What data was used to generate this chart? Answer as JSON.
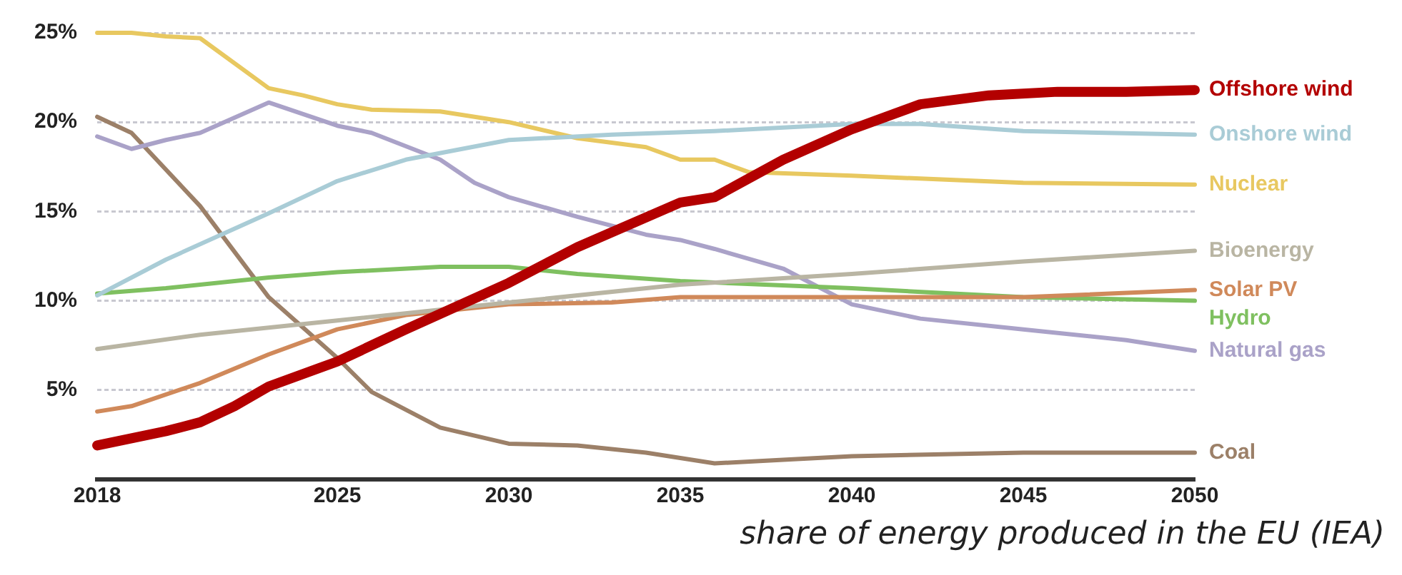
{
  "chart_data": {
    "type": "line",
    "xlim": [
      2018,
      2050
    ],
    "xticks": [
      2018,
      2025,
      2030,
      2035,
      2040,
      2045,
      2050
    ],
    "ylim": [
      0,
      25
    ],
    "yticks": [
      {
        "value": 5,
        "label": "5%"
      },
      {
        "value": 10,
        "label": "10%"
      },
      {
        "value": 15,
        "label": "15%"
      },
      {
        "value": 20,
        "label": "20%"
      },
      {
        "value": 25,
        "label": "25%"
      }
    ],
    "grid": "y",
    "legend": false,
    "marker": "none",
    "line_style": "solid",
    "annotations": [
      "share of energy produced in the EU (IEA)"
    ],
    "series": [
      {
        "name": "Offshore wind",
        "color": "#b30000",
        "x": [
          2018,
          2020,
          2021,
          2022,
          2023,
          2025,
          2027,
          2030,
          2032,
          2035,
          2036,
          2038,
          2040,
          2042,
          2044,
          2046,
          2048,
          2050
        ],
        "values": [
          1.9,
          2.7,
          3.2,
          4.1,
          5.2,
          6.6,
          8.4,
          11.0,
          13.0,
          15.5,
          15.8,
          17.9,
          19.6,
          21.0,
          21.5,
          21.7,
          21.7,
          21.8
        ]
      },
      {
        "name": "Onshore wind",
        "color": "#a9ccd6",
        "x": [
          2018,
          2020,
          2023,
          2025,
          2027,
          2030,
          2033,
          2036,
          2040,
          2042,
          2045,
          2050
        ],
        "values": [
          10.3,
          12.3,
          14.9,
          16.7,
          17.9,
          19.0,
          19.3,
          19.5,
          19.9,
          19.9,
          19.5,
          19.3
        ]
      },
      {
        "name": "Nuclear",
        "color": "#e8c860",
        "x": [
          2018,
          2019,
          2020,
          2021,
          2023,
          2024,
          2025,
          2026,
          2028,
          2030,
          2032,
          2034,
          2035,
          2036,
          2037,
          2040,
          2045,
          2050
        ],
        "values": [
          25.0,
          25.0,
          24.8,
          24.7,
          21.9,
          21.5,
          21.0,
          20.7,
          20.6,
          20.0,
          19.1,
          18.6,
          17.9,
          17.9,
          17.2,
          17.0,
          16.6,
          16.5
        ]
      },
      {
        "name": "Bioenergy",
        "color": "#b9b5a3",
        "x": [
          2018,
          2021,
          2025,
          2030,
          2035,
          2040,
          2045,
          2050
        ],
        "values": [
          7.3,
          8.1,
          8.9,
          9.9,
          10.9,
          11.5,
          12.2,
          12.8
        ]
      },
      {
        "name": "Solar PV",
        "color": "#d0895a",
        "x": [
          2018,
          2019,
          2021,
          2023,
          2025,
          2027,
          2030,
          2033,
          2035,
          2040,
          2045,
          2050
        ],
        "values": [
          3.8,
          4.1,
          5.4,
          7.0,
          8.4,
          9.2,
          9.8,
          9.9,
          10.2,
          10.2,
          10.2,
          10.6
        ]
      },
      {
        "name": "Hydro",
        "color": "#7fc060",
        "x": [
          2018,
          2020,
          2023,
          2025,
          2028,
          2030,
          2032,
          2035,
          2040,
          2045,
          2050
        ],
        "values": [
          10.4,
          10.7,
          11.3,
          11.6,
          11.9,
          11.9,
          11.5,
          11.1,
          10.7,
          10.2,
          10.0
        ]
      },
      {
        "name": "Natural gas",
        "color": "#aaa2c8",
        "x": [
          2018,
          2019,
          2020,
          2021,
          2023,
          2025,
          2026,
          2028,
          2029,
          2030,
          2032,
          2034,
          2035,
          2036,
          2038,
          2040,
          2042,
          2045,
          2048,
          2050
        ],
        "values": [
          19.2,
          18.5,
          19.0,
          19.4,
          21.1,
          19.8,
          19.4,
          17.9,
          16.6,
          15.8,
          14.7,
          13.7,
          13.4,
          12.9,
          11.8,
          9.8,
          9.0,
          8.4,
          7.8,
          7.2
        ]
      },
      {
        "name": "Coal",
        "color": "#9c8068",
        "x": [
          2018,
          2019,
          2021,
          2023,
          2025,
          2026,
          2028,
          2030,
          2032,
          2034,
          2036,
          2038,
          2040,
          2045,
          2050
        ],
        "values": [
          20.3,
          19.4,
          15.3,
          10.2,
          6.8,
          4.9,
          2.9,
          2.0,
          1.9,
          1.5,
          0.9,
          1.1,
          1.3,
          1.5,
          1.5
        ]
      }
    ]
  }
}
